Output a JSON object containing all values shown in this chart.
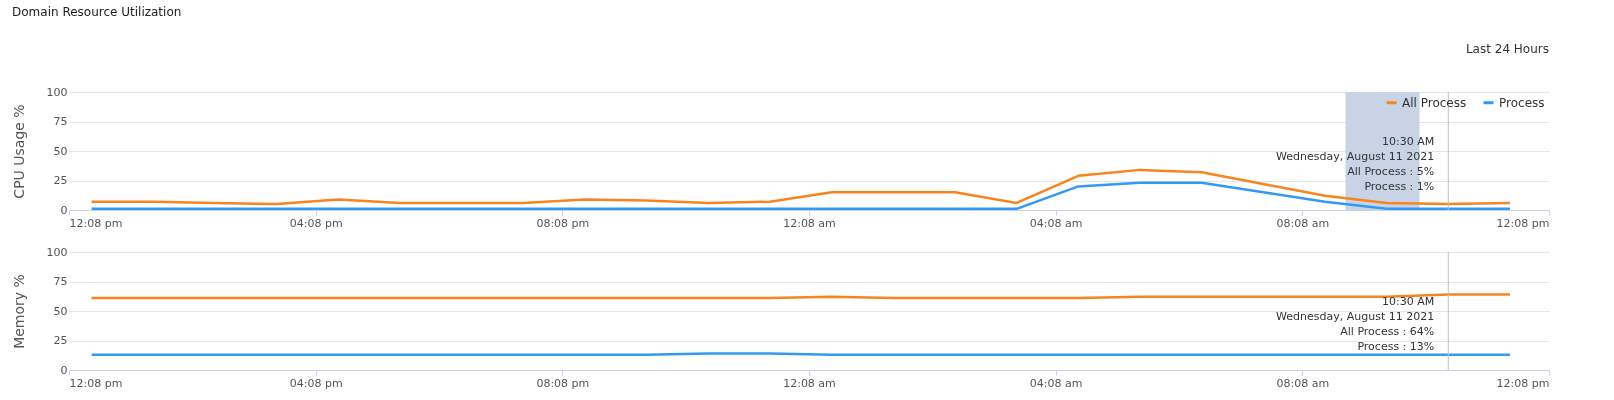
{
  "chart_data": [
    {
      "type": "line",
      "title": "Domain Resource Utilization",
      "subtitle": "Last 24 Hours",
      "ylabel": "CPU Usage %",
      "x": [
        "2021-08-10T12:30",
        "2021-08-10T13:30",
        "2021-08-10T14:30",
        "2021-08-10T15:30",
        "2021-08-10T16:30",
        "2021-08-10T17:30",
        "2021-08-10T18:30",
        "2021-08-10T19:30",
        "2021-08-10T20:30",
        "2021-08-10T21:30",
        "2021-08-10T22:30",
        "2021-08-10T23:30",
        "2021-08-11T00:30",
        "2021-08-11T01:30",
        "2021-08-11T02:30",
        "2021-08-11T03:30",
        "2021-08-11T04:30",
        "2021-08-11T05:30",
        "2021-08-11T06:30",
        "2021-08-11T07:30",
        "2021-08-11T08:30",
        "2021-08-11T09:30",
        "2021-08-11T10:30",
        "2021-08-11T11:30"
      ],
      "series": [
        {
          "name": "All Process",
          "color": "#f7841e",
          "values": [
            7,
            7,
            6,
            5,
            9,
            6,
            6,
            6,
            9,
            8,
            6,
            7,
            15,
            15,
            15,
            6,
            29,
            34,
            32,
            22,
            12,
            6,
            5,
            6
          ]
        },
        {
          "name": "Process",
          "color": "#3399f3",
          "values": [
            1,
            1,
            1,
            1,
            1,
            1,
            1,
            1,
            1,
            1,
            1,
            1,
            1,
            1,
            1,
            1,
            20,
            23,
            23,
            15,
            7,
            1,
            1,
            1
          ]
        }
      ],
      "xlim": [
        "2021-08-10T12:08",
        "2021-08-11T12:08"
      ],
      "xticks": [
        {
          "value": "2021-08-10T12:08",
          "label": "12:08 pm"
        },
        {
          "value": "2021-08-10T16:08",
          "label": "04:08 pm"
        },
        {
          "value": "2021-08-10T20:08",
          "label": "08:08 pm"
        },
        {
          "value": "2021-08-11T00:08",
          "label": "12:08 am"
        },
        {
          "value": "2021-08-11T04:08",
          "label": "04:08 am"
        },
        {
          "value": "2021-08-11T08:08",
          "label": "08:08 am"
        },
        {
          "value": "2021-08-11T12:08",
          "label": "12:08 pm"
        }
      ],
      "ylim": [
        0,
        100
      ],
      "yticks": [
        0,
        25,
        50,
        75,
        100
      ],
      "grid": "y",
      "legend": "top right",
      "bands": [
        {
          "axis": "x",
          "from": "2021-08-11T08:50",
          "to": "2021-08-11T10:02",
          "color": "#c9d3e6"
        }
      ],
      "ref_lines": [
        {
          "axis": "x",
          "value": "2021-08-11T10:30",
          "color": "#c0c0c0"
        }
      ],
      "annotations": [
        "10:30 AM",
        "Wednesday, August 11 2021",
        "All Process : 5%",
        "Process : 1%"
      ]
    },
    {
      "type": "line",
      "ylabel": "Memory %",
      "x": [
        "2021-08-10T12:30",
        "2021-08-10T13:30",
        "2021-08-10T14:30",
        "2021-08-10T15:30",
        "2021-08-10T16:30",
        "2021-08-10T17:30",
        "2021-08-10T18:30",
        "2021-08-10T19:30",
        "2021-08-10T20:30",
        "2021-08-10T21:30",
        "2021-08-10T22:30",
        "2021-08-10T23:30",
        "2021-08-11T00:30",
        "2021-08-11T01:30",
        "2021-08-11T02:30",
        "2021-08-11T03:30",
        "2021-08-11T04:30",
        "2021-08-11T05:30",
        "2021-08-11T06:30",
        "2021-08-11T07:30",
        "2021-08-11T08:30",
        "2021-08-11T09:30",
        "2021-08-11T10:30",
        "2021-08-11T11:30"
      ],
      "series": [
        {
          "color": "#f7841e",
          "values": [
            61,
            61,
            61,
            61,
            61,
            61,
            61,
            61,
            61,
            61,
            61,
            61,
            62,
            61,
            61,
            61,
            61,
            62,
            62,
            62,
            62,
            62,
            64,
            64
          ]
        },
        {
          "color": "#3399f3",
          "values": [
            13,
            13,
            13,
            13,
            13,
            13,
            13,
            13,
            13,
            13,
            14,
            14,
            13,
            13,
            13,
            13,
            13,
            13,
            13,
            13,
            13,
            13,
            13,
            13
          ]
        }
      ],
      "xlim": [
        "2021-08-10T12:08",
        "2021-08-11T12:08"
      ],
      "xticks": [
        {
          "value": "2021-08-10T12:08",
          "label": "12:08 pm"
        },
        {
          "value": "2021-08-10T16:08",
          "label": "04:08 pm"
        },
        {
          "value": "2021-08-10T20:08",
          "label": "08:08 pm"
        },
        {
          "value": "2021-08-11T00:08",
          "label": "12:08 am"
        },
        {
          "value": "2021-08-11T04:08",
          "label": "04:08 am"
        },
        {
          "value": "2021-08-11T08:08",
          "label": "08:08 am"
        },
        {
          "value": "2021-08-11T12:08",
          "label": "12:08 pm"
        }
      ],
      "ylim": [
        0,
        100
      ],
      "yticks": [
        0,
        25,
        50,
        75,
        100
      ],
      "grid": "y",
      "ref_lines": [
        {
          "axis": "x",
          "value": "2021-08-11T10:30",
          "color": "#c0c0c0"
        }
      ],
      "annotations": [
        "10:30 AM",
        "Wednesday, August 11 2021",
        "All Process : 64%",
        "Process : 13%"
      ]
    }
  ]
}
